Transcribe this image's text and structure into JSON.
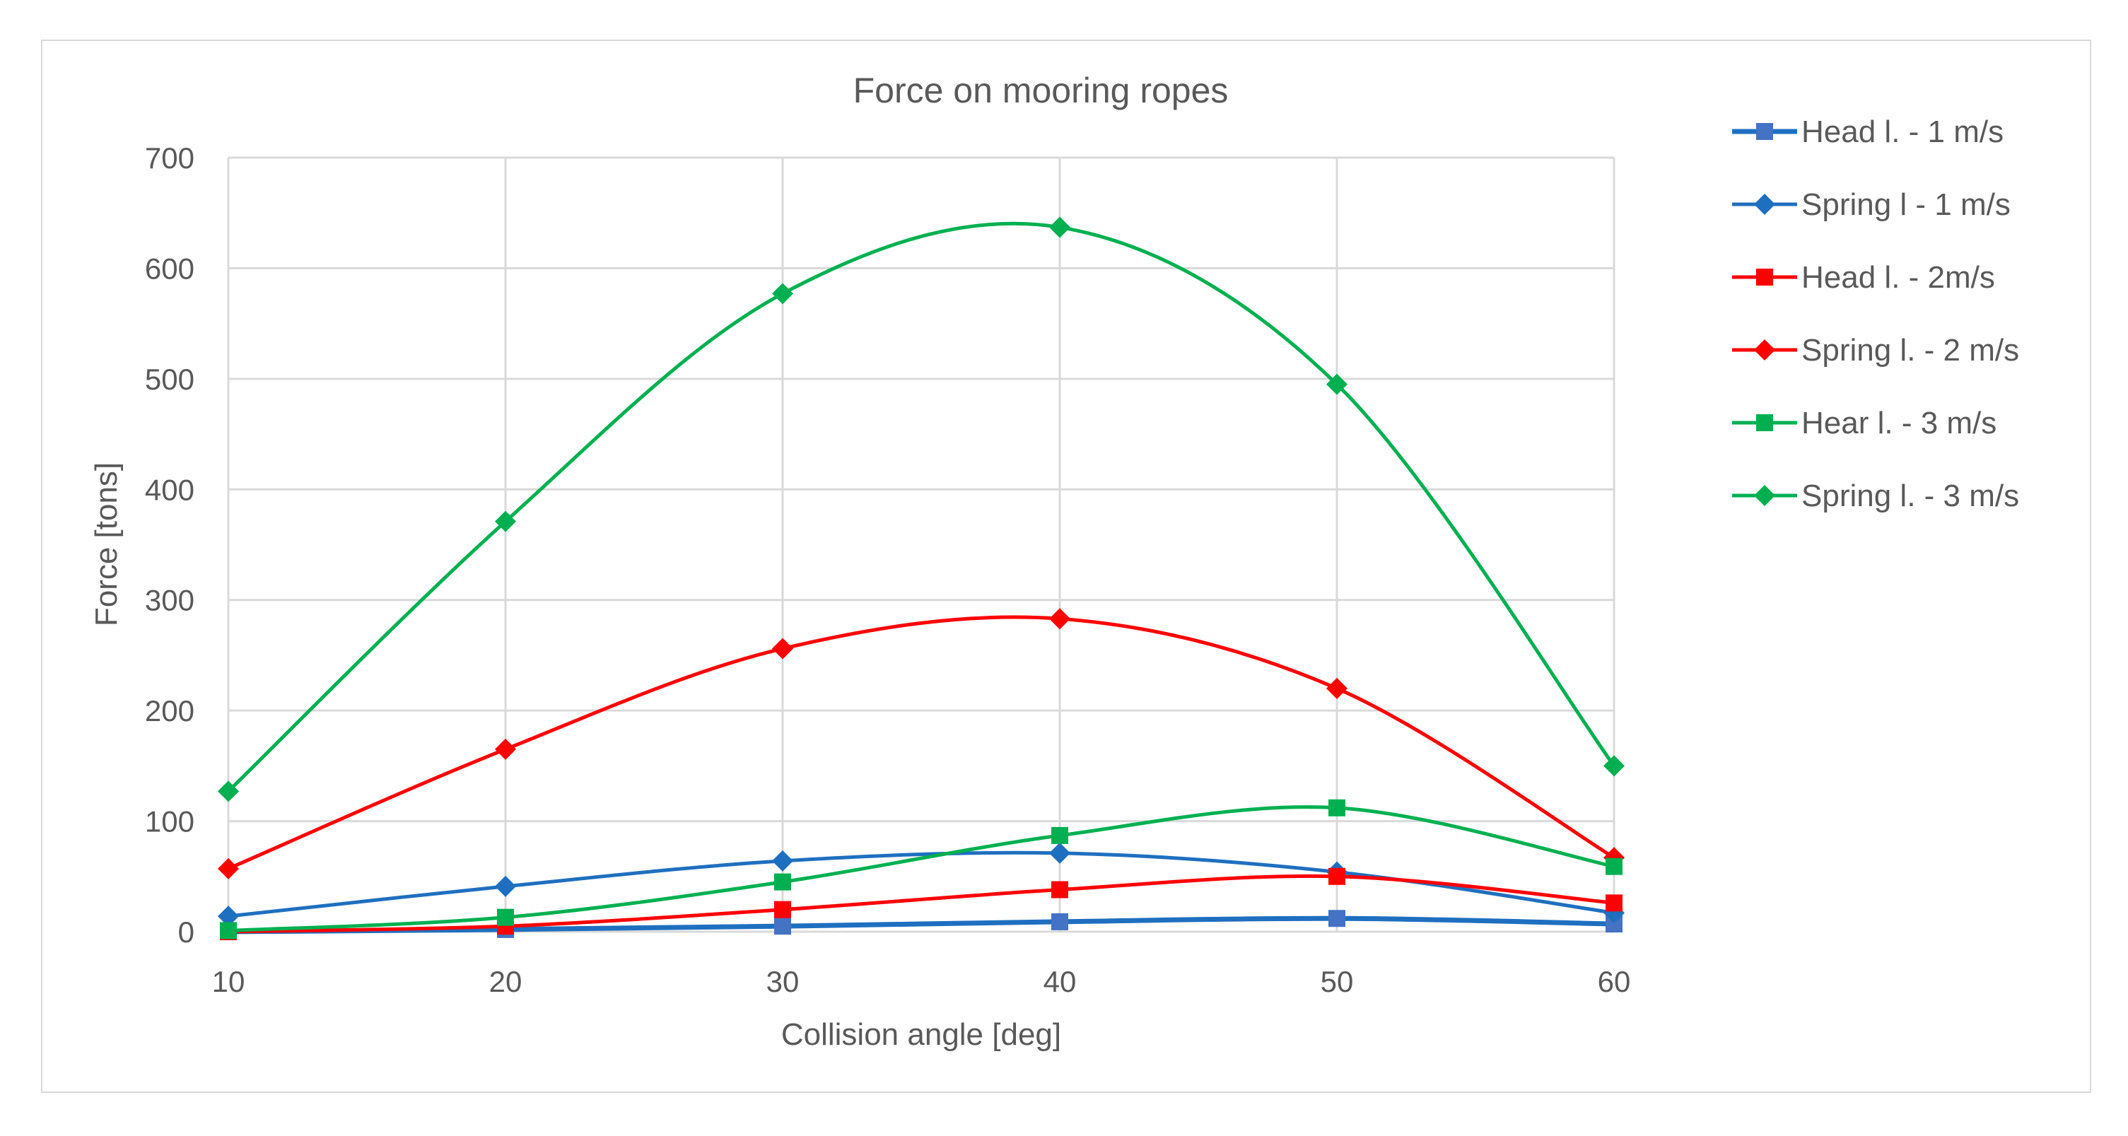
{
  "chart_data": {
    "type": "line",
    "title": "Force on mooring ropes",
    "xlabel": "Collision angle [deg]",
    "ylabel": "Force [tons]",
    "x": [
      10,
      20,
      30,
      40,
      50,
      60
    ],
    "xlim": [
      10,
      60
    ],
    "ylim": [
      0,
      700
    ],
    "xticks": [
      "10",
      "20",
      "30",
      "40",
      "50",
      "60"
    ],
    "yticks": [
      "0",
      "100",
      "200",
      "300",
      "400",
      "500",
      "600",
      "700"
    ],
    "grid": true,
    "smooth": true,
    "legend_position": "right",
    "series": [
      {
        "name": "Head l. - 1 m/s",
        "color": "#4472c4",
        "line_color": "#1f6fc0",
        "marker": "square",
        "values": [
          0,
          2,
          5,
          9,
          12,
          7
        ]
      },
      {
        "name": "Spring l - 1 m/s",
        "color": "#1f6fc0",
        "line_color": "#1f6fc0",
        "marker": "diamond",
        "values": [
          14,
          41,
          64,
          71,
          54,
          17
        ]
      },
      {
        "name": "Head l. - 2m/s",
        "color": "#ff0000",
        "line_color": "#ff0000",
        "marker": "square",
        "values": [
          0,
          5,
          20,
          38,
          50,
          26
        ]
      },
      {
        "name": "Spring l. - 2 m/s",
        "color": "#ff0000",
        "line_color": "#ff0000",
        "marker": "diamond",
        "values": [
          57,
          165,
          256,
          283,
          220,
          67
        ]
      },
      {
        "name": "Hear l. - 3 m/s",
        "color": "#00b050",
        "line_color": "#00b050",
        "marker": "square",
        "values": [
          1,
          13,
          45,
          87,
          112,
          59
        ]
      },
      {
        "name": "Spring l. - 3 m/s",
        "color": "#00b050",
        "line_color": "#00b050",
        "marker": "diamond",
        "values": [
          127,
          371,
          577,
          637,
          495,
          150
        ]
      }
    ]
  }
}
